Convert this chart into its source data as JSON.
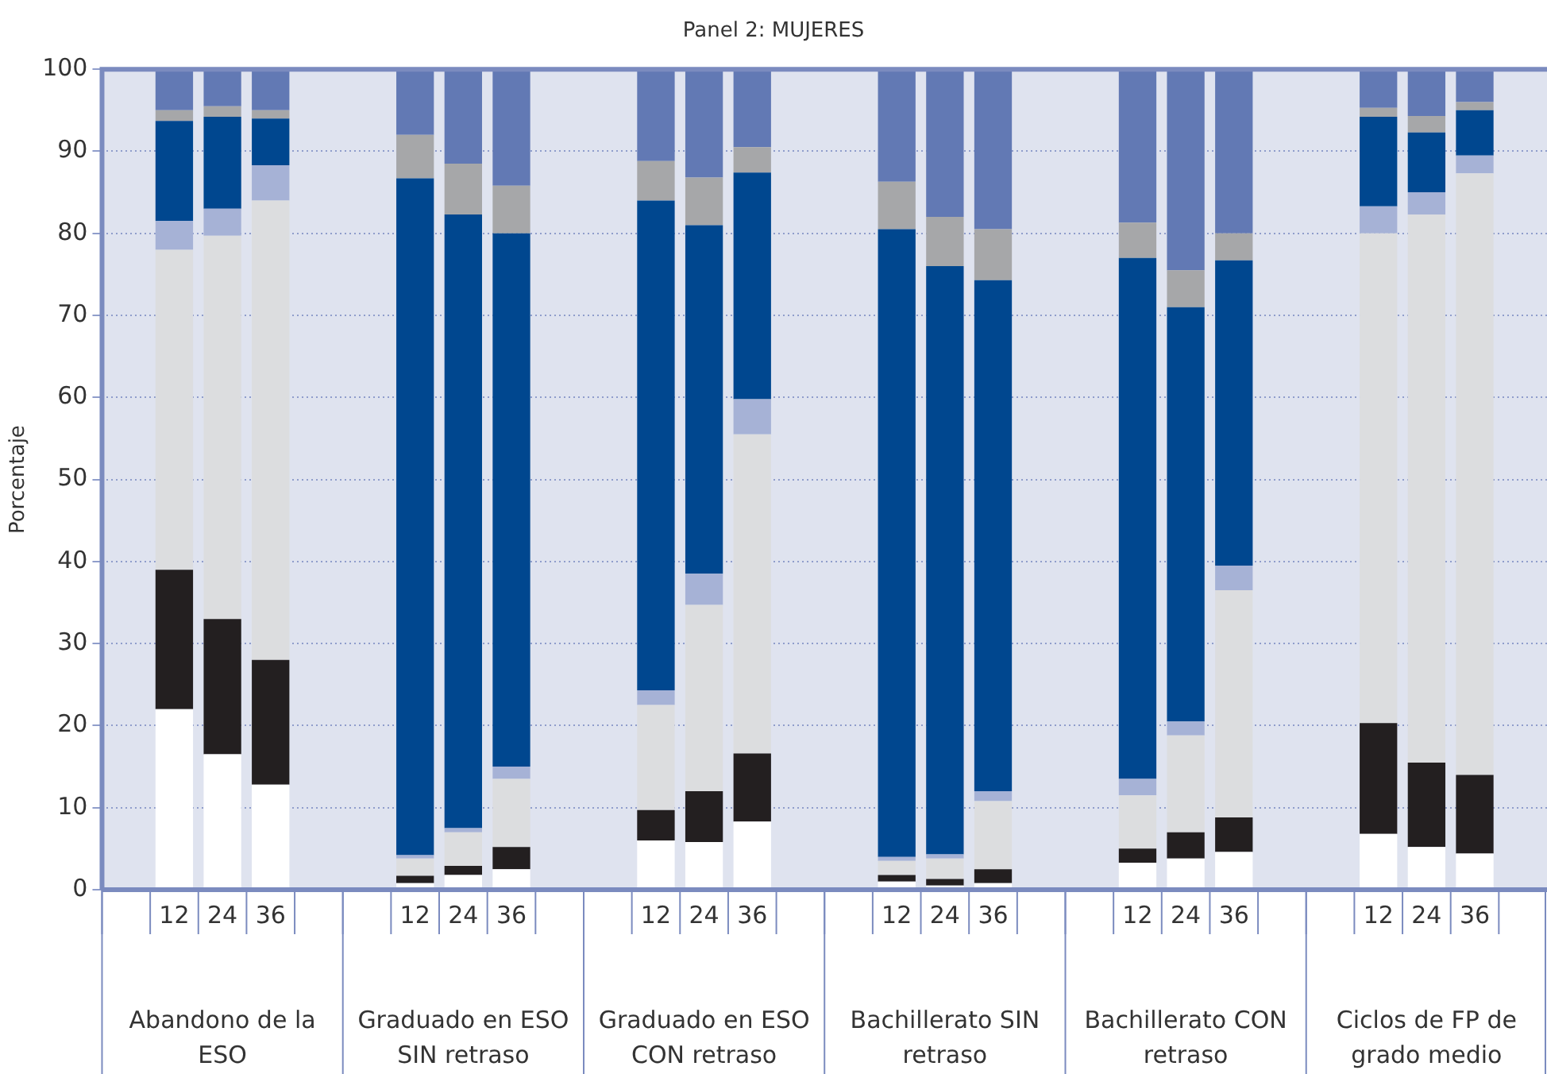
{
  "chart_data": {
    "type": "bar",
    "title": "Panel 2: MUJERES",
    "ylabel": "Porcentaje",
    "stacked": true,
    "grid": "y",
    "legend": false,
    "categories": [
      null,
      "12",
      "24",
      "36",
      null,
      null,
      "12",
      "24",
      "36",
      null,
      null,
      "12",
      "24",
      "36",
      null,
      null,
      "12",
      "24",
      "36",
      null,
      null,
      "12",
      "24",
      "36",
      null,
      null,
      "12",
      "24",
      "36",
      null
    ],
    "annotations": [
      "Abandono de la ESO",
      "Graduado en ESO SIN retraso",
      "Graduado en ESO CON retraso",
      "Bachillerato SIN retraso",
      "Bachillerato CON retraso",
      "Ciclos de FP de grado medio"
    ],
    "ylim": [
      0,
      100
    ],
    "yticks": [
      0,
      10,
      20,
      30,
      40,
      50,
      60,
      70,
      80,
      90,
      100
    ],
    "series": [
      {
        "color": "#ffffff",
        "values": [
          null,
          22,
          16.5,
          12.8,
          null,
          null,
          0.8,
          1.8,
          2.5,
          null,
          null,
          6,
          5.8,
          8.3,
          null,
          null,
          1,
          0.5,
          0.8,
          null,
          null,
          3.3,
          3.8,
          4.6,
          null,
          null,
          6.8,
          5.2,
          4.4,
          null
        ]
      },
      {
        "color": "#231f20",
        "values": [
          null,
          17,
          16.5,
          15.2,
          null,
          null,
          0.9,
          1.1,
          2.7,
          null,
          null,
          3.7,
          6.2,
          8.3,
          null,
          null,
          0.8,
          0.8,
          1.7,
          null,
          null,
          1.7,
          3.2,
          4.2,
          null,
          null,
          13.5,
          10.3,
          9.6,
          null
        ]
      },
      {
        "color": "#dcdddf",
        "values": [
          null,
          39,
          46.7,
          56,
          null,
          null,
          2.1,
          4.1,
          8.3,
          null,
          null,
          12.8,
          22.7,
          38.9,
          null,
          null,
          1.7,
          2.5,
          8.3,
          null,
          null,
          6.5,
          11.8,
          27.7,
          null,
          null,
          59.7,
          66.8,
          73.3,
          null
        ]
      },
      {
        "color": "#a6b2d6",
        "values": [
          null,
          3.5,
          3.3,
          4.3,
          null,
          null,
          0.4,
          0.5,
          1.5,
          null,
          null,
          1.8,
          3.8,
          4.3,
          null,
          null,
          0.5,
          0.5,
          1.2,
          null,
          null,
          2,
          1.7,
          3,
          null,
          null,
          3.3,
          2.7,
          2.2,
          null
        ]
      },
      {
        "color": "#00478f",
        "values": [
          null,
          12.2,
          11.2,
          5.7,
          null,
          null,
          82.5,
          74.8,
          65,
          null,
          null,
          59.7,
          42.5,
          27.6,
          null,
          null,
          76.5,
          71.7,
          62.3,
          null,
          null,
          63.5,
          50.5,
          37.2,
          null,
          null,
          10.9,
          7.3,
          5.5,
          null
        ]
      },
      {
        "color": "#a6a7a9",
        "values": [
          null,
          1.3,
          1.3,
          1,
          null,
          null,
          5.3,
          6.2,
          5.8,
          null,
          null,
          4.8,
          5.8,
          3.1,
          null,
          null,
          5.8,
          6,
          6.2,
          null,
          null,
          4.3,
          4.5,
          3.3,
          null,
          null,
          1.1,
          2,
          1,
          null
        ]
      },
      {
        "color": "#6279b4",
        "values": [
          null,
          5,
          4.5,
          5,
          null,
          null,
          8,
          11.5,
          14.2,
          null,
          null,
          11.2,
          13.2,
          9.5,
          null,
          null,
          13.7,
          18,
          19.5,
          null,
          null,
          18.7,
          24.5,
          20,
          null,
          null,
          4.7,
          5.7,
          4,
          null
        ]
      }
    ]
  }
}
